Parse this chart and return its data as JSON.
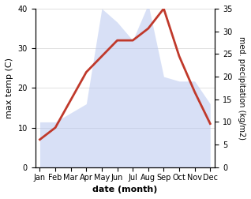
{
  "months": [
    "Jan",
    "Feb",
    "Mar",
    "Apr",
    "May",
    "Jun",
    "Jul",
    "Aug",
    "Sep",
    "Oct",
    "Nov",
    "Dec"
  ],
  "temperature": [
    7,
    10,
    17,
    24,
    28,
    32,
    32,
    35,
    40,
    28,
    19,
    11
  ],
  "precipitation": [
    10,
    10,
    12,
    14,
    35,
    32,
    28,
    36,
    20,
    19,
    19,
    14
  ],
  "temp_color": "#c0392b",
  "precip_fill_color": "#b8c8f0",
  "temp_ylim": [
    0,
    40
  ],
  "precip_ylim": [
    0,
    35
  ],
  "xlabel": "date (month)",
  "ylabel_left": "max temp (C)",
  "ylabel_right": "med. precipitation (kg/m2)",
  "figsize": [
    3.18,
    2.52
  ],
  "dpi": 100,
  "yticks_left": [
    0,
    10,
    20,
    30,
    40
  ],
  "yticks_right": [
    0,
    5,
    10,
    15,
    20,
    25,
    30,
    35
  ]
}
